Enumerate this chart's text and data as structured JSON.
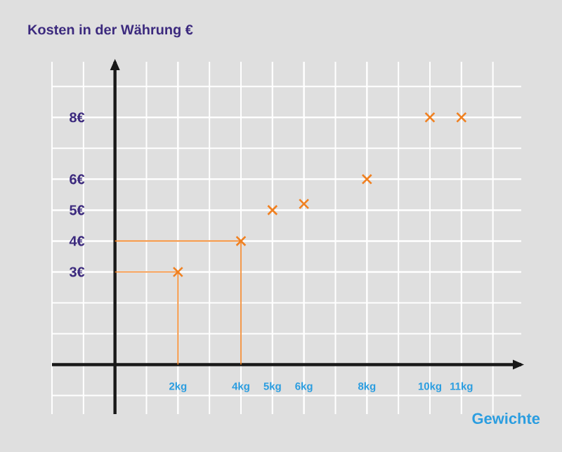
{
  "chart_data": {
    "type": "scatter",
    "xlabel": "Gewichte",
    "ylabel": "Kosten in der Währung €",
    "series": [
      {
        "type": "line",
        "marker": "none",
        "color": "#f08020",
        "x": [
          2,
          2,
          0
        ],
        "values": [
          0,
          3,
          3
        ]
      },
      {
        "type": "line",
        "marker": "none",
        "color": "#f08020",
        "x": [
          4,
          4,
          0
        ],
        "values": [
          0,
          4,
          4
        ]
      },
      {
        "color": "#f08020",
        "x": [
          2,
          4,
          5,
          6,
          8,
          10,
          11
        ],
        "values": [
          3,
          4,
          5,
          5.2,
          6,
          8,
          8
        ]
      }
    ],
    "marker": "cross",
    "grid": true,
    "xlim": [
      -2,
      12.9
    ],
    "ylim": [
      -1.6,
      9.8
    ],
    "xticks": [
      {
        "value": 2,
        "label": "2kg"
      },
      {
        "value": 4,
        "label": "4kg"
      },
      {
        "value": 5,
        "label": "5kg"
      },
      {
        "value": 6,
        "label": "6kg"
      },
      {
        "value": 8,
        "label": "8kg"
      },
      {
        "value": 10,
        "label": "10kg"
      },
      {
        "value": 11,
        "label": "11kg"
      }
    ],
    "yticks": [
      {
        "value": 3,
        "label": "3€"
      },
      {
        "value": 4,
        "label": "4€"
      },
      {
        "value": 5,
        "label": "5€"
      },
      {
        "value": 6,
        "label": "6€"
      },
      {
        "value": 8,
        "label": "8€"
      }
    ]
  }
}
